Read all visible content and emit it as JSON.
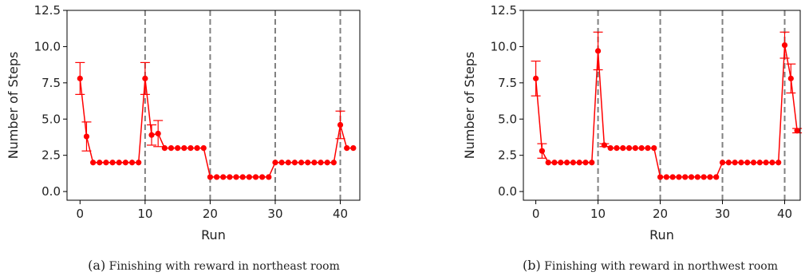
{
  "chart_data": [
    {
      "type": "line",
      "caption_letter": "(a)",
      "caption": "Finishing with reward in northeast room",
      "xlabel": "Run",
      "ylabel": "Number of Steps",
      "xlim": [
        -2,
        43
      ],
      "ylim": [
        -0.6,
        12.5
      ],
      "xticks": [
        0,
        10,
        20,
        30,
        40
      ],
      "xtick_labels": [
        "0",
        "10",
        "20",
        "30",
        "40"
      ],
      "yticks": [
        0.0,
        2.5,
        5.0,
        7.5,
        10.0,
        12.5
      ],
      "ytick_labels": [
        "0.0",
        "2.5",
        "5.0",
        "7.5",
        "10.0",
        "12.5"
      ],
      "vlines": [
        10,
        20,
        30,
        40
      ],
      "grid": false,
      "series": [
        {
          "color": "#ff0000",
          "x": [
            0,
            1,
            2,
            3,
            4,
            5,
            6,
            7,
            8,
            9,
            10,
            11,
            12,
            13,
            14,
            15,
            16,
            17,
            18,
            19,
            20,
            21,
            22,
            23,
            24,
            25,
            26,
            27,
            28,
            29,
            30,
            31,
            32,
            33,
            34,
            35,
            36,
            37,
            38,
            39,
            40,
            41,
            42
          ],
          "y": [
            7.8,
            3.8,
            2,
            2,
            2,
            2,
            2,
            2,
            2,
            2,
            7.8,
            3.9,
            4.0,
            3,
            3,
            3,
            3,
            3,
            3,
            3,
            1,
            1,
            1,
            1,
            1,
            1,
            1,
            1,
            1,
            1,
            2,
            2,
            2,
            2,
            2,
            2,
            2,
            2,
            2,
            2,
            4.6,
            3,
            3
          ],
          "err": [
            1.1,
            1.0,
            0,
            0,
            0,
            0,
            0,
            0,
            0,
            0,
            1.1,
            0.7,
            0.9,
            0,
            0,
            0,
            0,
            0,
            0,
            0,
            0,
            0,
            0,
            0,
            0,
            0,
            0,
            0,
            0,
            0,
            0,
            0,
            0,
            0,
            0,
            0,
            0,
            0,
            0,
            0,
            0.95,
            0,
            0
          ]
        }
      ]
    },
    {
      "type": "line",
      "caption_letter": "(b)",
      "caption": "Finishing with reward in northwest room",
      "xlabel": "Run",
      "ylabel": "Number of Steps",
      "xlim": [
        -2,
        42.5
      ],
      "ylim": [
        -0.6,
        12.5
      ],
      "xticks": [
        0,
        10,
        20,
        30,
        40
      ],
      "xtick_labels": [
        "0",
        "10",
        "20",
        "30",
        "40"
      ],
      "yticks": [
        0.0,
        2.5,
        5.0,
        7.5,
        10.0,
        12.5
      ],
      "ytick_labels": [
        "0.0",
        "2.5",
        "5.0",
        "7.5",
        "10.0",
        "12.5"
      ],
      "vlines": [
        10,
        20,
        30,
        40
      ],
      "grid": false,
      "series": [
        {
          "color": "#ff0000",
          "x": [
            0,
            1,
            2,
            3,
            4,
            5,
            6,
            7,
            8,
            9,
            10,
            11,
            12,
            13,
            14,
            15,
            16,
            17,
            18,
            19,
            20,
            21,
            22,
            23,
            24,
            25,
            26,
            27,
            28,
            29,
            30,
            31,
            32,
            33,
            34,
            35,
            36,
            37,
            38,
            39,
            40,
            41,
            42
          ],
          "y": [
            7.8,
            2.8,
            2,
            2,
            2,
            2,
            2,
            2,
            2,
            2,
            9.7,
            3.2,
            3,
            3,
            3,
            3,
            3,
            3,
            3,
            3,
            1,
            1,
            1,
            1,
            1,
            1,
            1,
            1,
            1,
            1,
            2,
            2,
            2,
            2,
            2,
            2,
            2,
            2,
            2,
            2,
            10.1,
            7.8,
            4.2
          ],
          "err": [
            1.2,
            0.5,
            0,
            0,
            0,
            0,
            0,
            0,
            0,
            0,
            1.3,
            0.1,
            0,
            0,
            0,
            0,
            0,
            0,
            0,
            0,
            0,
            0,
            0,
            0,
            0,
            0,
            0,
            0,
            0,
            0,
            0,
            0,
            0,
            0,
            0,
            0,
            0,
            0,
            0,
            0,
            0.9,
            1.0,
            0.15
          ]
        }
      ]
    }
  ]
}
